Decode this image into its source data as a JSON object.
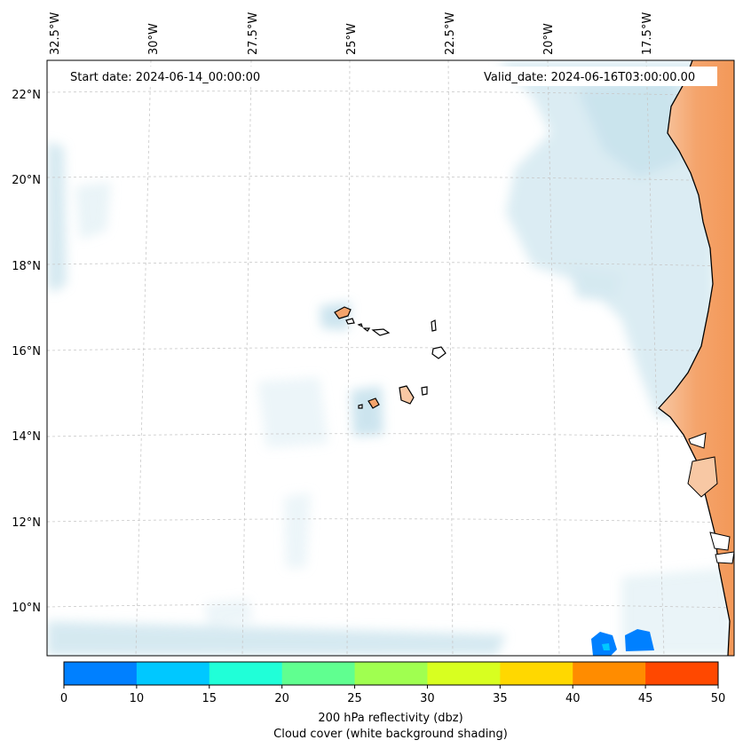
{
  "map": {
    "start_date_label": "Start date: 2024-06-14_00:00:00",
    "valid_date_label": "Valid_date: 2024-06-16T03:00:00.00",
    "lon_labels": [
      "32.5°W",
      "30°W",
      "27.5°W",
      "25°W",
      "22.5°W",
      "20°W",
      "17.5°W"
    ],
    "lat_labels": [
      "22°N",
      "20°N",
      "18°N",
      "16°N",
      "14°N",
      "12°N",
      "10°N"
    ]
  },
  "colorbar": {
    "ticks": [
      "0",
      "10",
      "15",
      "20",
      "25",
      "30",
      "35",
      "40",
      "45",
      "50"
    ],
    "colors": [
      "#0080ff",
      "#00c8ff",
      "#20ffd8",
      "#60ff90",
      "#a0ff50",
      "#d8ff20",
      "#ffd800",
      "#ff8c00",
      "#ff4800"
    ],
    "label_line1": "200 hPa reflectivity (dbz)",
    "label_line2": "Cloud cover (white background shading)"
  },
  "colors": {
    "land": "#f4a46c",
    "cloud": "#cfe6ef",
    "frame": "#000000"
  }
}
